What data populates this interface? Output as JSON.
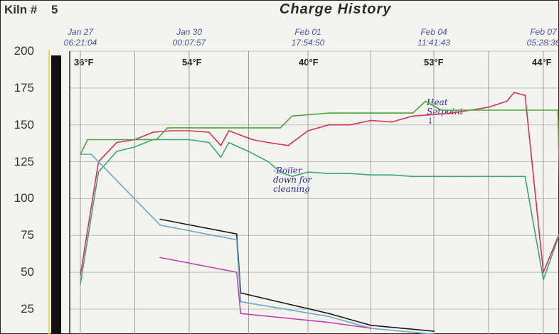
{
  "header": {
    "kiln_label": "Kiln #",
    "kiln_number": "5",
    "title": "Charge History"
  },
  "chart_data": {
    "type": "line",
    "title": "Charge History",
    "ylim": [
      0,
      200
    ],
    "yticks": [
      "200",
      "175",
      "150",
      "125",
      "100",
      "75",
      "50",
      "25"
    ],
    "date_ticks": [
      {
        "date": "Jan 27",
        "time": "06:21:04"
      },
      {
        "date": "Jan 30",
        "time": "00:07:57"
      },
      {
        "date": "Feb 01",
        "time": "17:54:50"
      },
      {
        "date": "Feb 04",
        "time": "11:41:43"
      },
      {
        "date": "Feb 07",
        "time": "05:28:36"
      }
    ],
    "outdoor_temps": [
      "36°F",
      "54°F",
      "40°F",
      "53°F",
      "44°F"
    ],
    "grid": true,
    "series": [
      {
        "color": "#d2335a",
        "x": [
          0,
          0.5,
          1,
          1.5,
          2,
          2.5,
          3,
          3.5,
          3.8,
          4,
          4.3,
          4.6,
          5,
          5.5,
          6,
          6.5,
          7,
          7.5,
          8,
          8.5,
          9,
          9.5,
          10,
          10.5,
          11,
          11.2,
          11.5,
          12,
          12.5,
          12.7,
          13
        ],
        "y": [
          48,
          125,
          138,
          140,
          145,
          146,
          146,
          145,
          136,
          146,
          143,
          140,
          138,
          136,
          146,
          150,
          150,
          153,
          152,
          156,
          157,
          158,
          160,
          162,
          166,
          172,
          170,
          50,
          80,
          100,
          108
        ]
      },
      {
        "color": "#3fa57a",
        "x": [
          0,
          0.5,
          1,
          1.5,
          2,
          2.5,
          3,
          3.5,
          3.8,
          4,
          4.5,
          5,
          5.3,
          5.6,
          6,
          6.5,
          7,
          7.5,
          8,
          8.5,
          9,
          9.5,
          10,
          10.5,
          11,
          11.5,
          12,
          12.5,
          12.7,
          13
        ],
        "y": [
          42,
          118,
          132,
          135,
          140,
          140,
          140,
          138,
          128,
          138,
          132,
          125,
          118,
          115,
          118,
          117,
          117,
          116,
          116,
          115,
          115,
          115,
          115,
          115,
          115,
          115,
          45,
          80,
          100,
          108
        ]
      },
      {
        "color": "#4ea43a",
        "x": [
          0,
          0.2,
          2.1,
          2.4,
          4,
          5.3,
          5.6,
          6.5,
          8.5,
          8.8,
          9.2,
          12,
          12.4,
          12.5,
          13
        ],
        "y": [
          130,
          140,
          140,
          148,
          148,
          148,
          156,
          158,
          158,
          166,
          160,
          160,
          160,
          45,
          45
        ]
      },
      {
        "color": "#1e1e1e",
        "x": [
          2.2,
          4.2,
          4.3,
          6.5,
          7.5,
          9
        ],
        "y": [
          86,
          76,
          36,
          22,
          14,
          10
        ]
      },
      {
        "color": "#6aa7c8",
        "x": [
          0,
          0.3,
          2.2,
          4.2,
          4.3,
          6.5,
          7.5,
          9
        ],
        "y": [
          130,
          130,
          82,
          72,
          30,
          20,
          12,
          8
        ]
      },
      {
        "color": "#c444b0",
        "x": [
          2.2,
          4.2,
          4.3,
          6.5,
          7.5
        ],
        "y": [
          60,
          50,
          22,
          16,
          12
        ]
      }
    ],
    "annotations": [
      {
        "text": "Heat\nSetpoint\n↓",
        "x": 9.0,
        "y": 168
      },
      {
        "text": "-Boiler\ndown for\ncleaning",
        "x": 5.3,
        "y": 122
      }
    ]
  }
}
